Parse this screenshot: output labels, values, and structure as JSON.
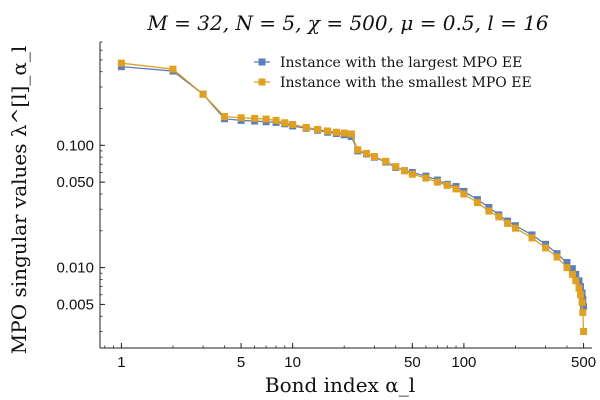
{
  "chart_data": {
    "type": "line",
    "title": "M = 32, N = 5, χ = 500, μ = 0.5, l = 16",
    "xlabel": "Bond index α_l",
    "ylabel": "MPO singular values λ^[l]_α_l",
    "x_scale": "log",
    "y_scale": "log",
    "xlim": [
      0.75,
      560
    ],
    "ylim": [
      0.0022,
      0.7
    ],
    "x_ticks": [
      {
        "value": 1,
        "label": "1"
      },
      {
        "value": 5,
        "label": "5"
      },
      {
        "value": 10,
        "label": "10"
      },
      {
        "value": 50,
        "label": "50"
      },
      {
        "value": 100,
        "label": "100"
      },
      {
        "value": 500,
        "label": "500"
      }
    ],
    "y_ticks": [
      {
        "value": 0.1,
        "label": "0.100"
      },
      {
        "value": 0.05,
        "label": "0.050"
      },
      {
        "value": 0.01,
        "label": "0.010"
      },
      {
        "value": 0.005,
        "label": "0.005"
      }
    ],
    "grid": false,
    "legend_position": "top-right",
    "series": [
      {
        "name": "Instance with the largest MPO EE",
        "color": "#5b7fbc",
        "marker": "square",
        "points": [
          [
            1,
            0.44
          ],
          [
            2,
            0.405
          ],
          [
            3,
            0.262
          ],
          [
            4,
            0.165
          ],
          [
            5,
            0.16
          ],
          [
            6,
            0.158
          ],
          [
            7,
            0.156
          ],
          [
            8,
            0.154
          ],
          [
            9,
            0.15
          ],
          [
            10,
            0.144
          ],
          [
            12,
            0.138
          ],
          [
            14,
            0.133
          ],
          [
            16,
            0.128
          ],
          [
            18,
            0.125
          ],
          [
            20,
            0.122
          ],
          [
            22,
            0.118
          ],
          [
            24,
            0.09
          ],
          [
            27,
            0.085
          ],
          [
            30,
            0.08
          ],
          [
            35,
            0.073
          ],
          [
            40,
            0.066
          ],
          [
            45,
            0.062
          ],
          [
            50,
            0.06
          ],
          [
            60,
            0.056
          ],
          [
            70,
            0.052
          ],
          [
            80,
            0.048
          ],
          [
            90,
            0.046
          ],
          [
            100,
            0.042
          ],
          [
            120,
            0.036
          ],
          [
            140,
            0.031
          ],
          [
            160,
            0.027
          ],
          [
            180,
            0.024
          ],
          [
            200,
            0.022
          ],
          [
            250,
            0.0185
          ],
          [
            300,
            0.0155
          ],
          [
            350,
            0.013
          ],
          [
            400,
            0.011
          ],
          [
            430,
            0.0098
          ],
          [
            450,
            0.0088
          ],
          [
            470,
            0.0078
          ],
          [
            480,
            0.007
          ],
          [
            490,
            0.0062
          ],
          [
            495,
            0.0055
          ],
          [
            500,
            0.0048
          ]
        ]
      },
      {
        "name": "Instance with the smallest MPO EE",
        "color": "#e0a021",
        "marker": "square",
        "points": [
          [
            1,
            0.47
          ],
          [
            2,
            0.42
          ],
          [
            3,
            0.262
          ],
          [
            4,
            0.172
          ],
          [
            5,
            0.168
          ],
          [
            6,
            0.166
          ],
          [
            7,
            0.164
          ],
          [
            8,
            0.16
          ],
          [
            9,
            0.153
          ],
          [
            10,
            0.148
          ],
          [
            12,
            0.14
          ],
          [
            14,
            0.135
          ],
          [
            16,
            0.131
          ],
          [
            18,
            0.128
          ],
          [
            20,
            0.126
          ],
          [
            22,
            0.124
          ],
          [
            24,
            0.092
          ],
          [
            27,
            0.086
          ],
          [
            30,
            0.081
          ],
          [
            35,
            0.074
          ],
          [
            40,
            0.067
          ],
          [
            45,
            0.062
          ],
          [
            50,
            0.058
          ],
          [
            60,
            0.054
          ],
          [
            70,
            0.05
          ],
          [
            80,
            0.047
          ],
          [
            90,
            0.044
          ],
          [
            100,
            0.04
          ],
          [
            120,
            0.034
          ],
          [
            140,
            0.029
          ],
          [
            160,
            0.026
          ],
          [
            180,
            0.023
          ],
          [
            200,
            0.021
          ],
          [
            250,
            0.0175
          ],
          [
            300,
            0.0145
          ],
          [
            350,
            0.0122
          ],
          [
            400,
            0.01
          ],
          [
            430,
            0.0088
          ],
          [
            450,
            0.0078
          ],
          [
            470,
            0.0068
          ],
          [
            480,
            0.006
          ],
          [
            490,
            0.0052
          ],
          [
            495,
            0.0043
          ],
          [
            500,
            0.003
          ]
        ]
      }
    ]
  }
}
